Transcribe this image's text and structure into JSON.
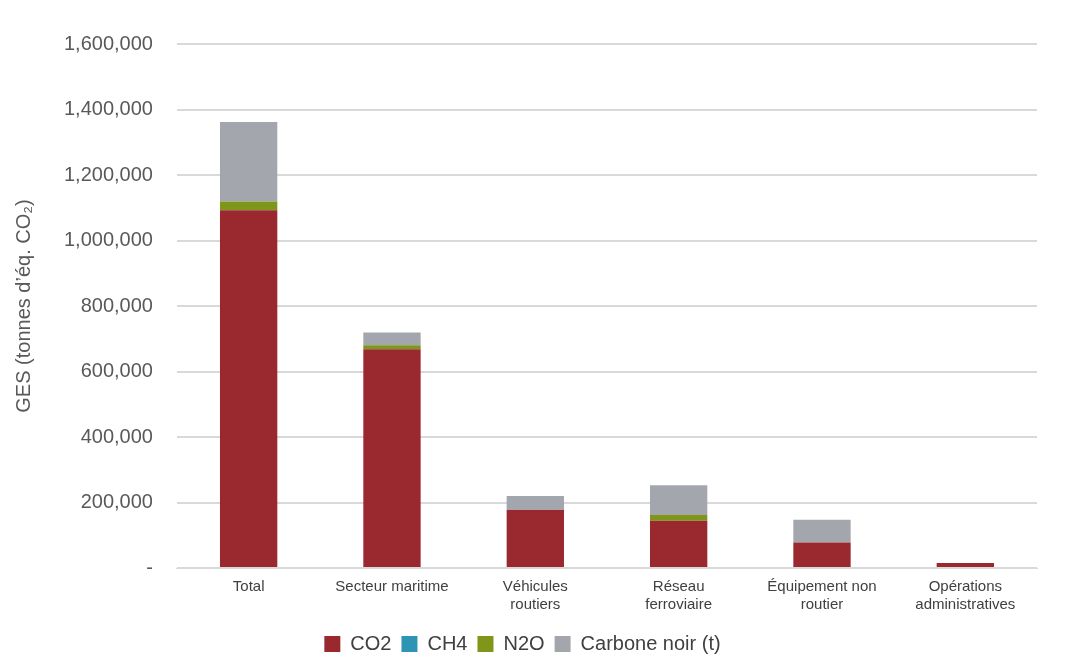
{
  "chart_data": {
    "type": "bar",
    "stacked": true,
    "ylabel": "GES (tonnes d’éq. CO₂)",
    "categories": [
      "Total",
      "Secteur maritime",
      "Véhicules routiers",
      "Réseau ferroviaire",
      "Équipement non routier",
      "Opérations administratives"
    ],
    "series": [
      {
        "name": "CO2",
        "color": "#9a282f",
        "values": [
          1092000,
          668000,
          177000,
          144000,
          78000,
          15000
        ]
      },
      {
        "name": "CH4",
        "color": "#2e94b3",
        "values": [
          0,
          0,
          0,
          0,
          0,
          0
        ]
      },
      {
        "name": "N2O",
        "color": "#7f961a",
        "values": [
          27000,
          12000,
          0,
          18000,
          0,
          0
        ]
      },
      {
        "name": "Carbone noir (t)",
        "color": "#a3a7ad",
        "values": [
          243000,
          39000,
          43000,
          91000,
          69000,
          0
        ]
      }
    ],
    "ylim": [
      0,
      1600000
    ],
    "yticks": [
      {
        "value": 0,
        "label": "-"
      },
      {
        "value": 200000,
        "label": "200,000"
      },
      {
        "value": 400000,
        "label": "400,000"
      },
      {
        "value": 600000,
        "label": "600,000"
      },
      {
        "value": 800000,
        "label": "800,000"
      },
      {
        "value": 1000000,
        "label": "1,000,000"
      },
      {
        "value": 1200000,
        "label": "1,200,000"
      },
      {
        "value": 1400000,
        "label": "1,400,000"
      },
      {
        "value": 1600000,
        "label": "1,600,000"
      }
    ],
    "grid": "y",
    "legend": "bottom"
  }
}
